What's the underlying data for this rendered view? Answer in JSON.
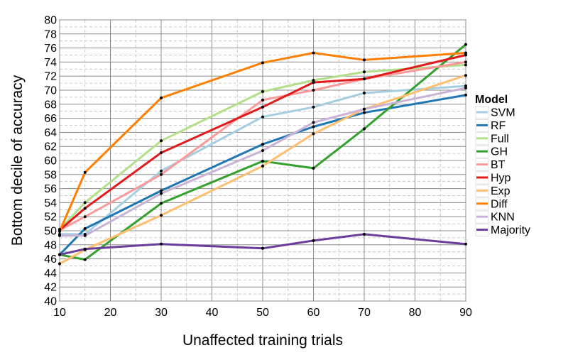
{
  "chart_data": {
    "type": "line",
    "xlabel": "Unaffected training trials",
    "ylabel": "Bottom decile of accuracy",
    "x": [
      10,
      15,
      30,
      50,
      60,
      70,
      90
    ],
    "xticks": [
      10,
      20,
      30,
      40,
      50,
      60,
      70,
      80,
      90
    ],
    "yticks": [
      40,
      42,
      44,
      46,
      48,
      50,
      52,
      54,
      56,
      58,
      60,
      62,
      64,
      66,
      68,
      70,
      72,
      74,
      76,
      78,
      80
    ],
    "xlim": [
      10,
      90
    ],
    "ylim": [
      40,
      80
    ],
    "grid": true,
    "legend": {
      "title": "Model",
      "position": "right"
    },
    "series": [
      {
        "name": "SVM",
        "color": "#a6cee3",
        "values": [
          49.5,
          49.5,
          58.5,
          66.2,
          67.6,
          69.6,
          70.6
        ]
      },
      {
        "name": "RF",
        "color": "#1f78b4",
        "values": [
          46.6,
          50.3,
          55.7,
          62.3,
          64.8,
          66.8,
          69.3
        ]
      },
      {
        "name": "Full",
        "color": "#b2df8a",
        "values": [
          50.2,
          54.0,
          62.8,
          69.8,
          71.4,
          72.6,
          73.6
        ]
      },
      {
        "name": "GH",
        "color": "#33a02c",
        "values": [
          46.6,
          45.9,
          53.9,
          59.9,
          58.9,
          64.5,
          76.5
        ]
      },
      {
        "name": "BT",
        "color": "#fb9a99",
        "values": [
          50.1,
          52.0,
          58.0,
          68.6,
          70.0,
          71.6,
          74.0
        ]
      },
      {
        "name": "Hyp",
        "color": "#e31a1c",
        "values": [
          50.1,
          53.2,
          61.1,
          67.6,
          71.1,
          71.6,
          75.0
        ]
      },
      {
        "name": "Exp",
        "color": "#fdbf6f",
        "values": [
          45.3,
          47.3,
          52.2,
          59.2,
          63.8,
          67.3,
          72.1
        ]
      },
      {
        "name": "Diff",
        "color": "#ff7f00",
        "values": [
          49.9,
          58.3,
          68.9,
          73.9,
          75.3,
          74.3,
          75.3
        ]
      },
      {
        "name": "KNN",
        "color": "#cab2d6",
        "values": [
          49.3,
          49.3,
          55.3,
          61.4,
          65.4,
          67.3,
          70.3
        ]
      },
      {
        "name": "Majority",
        "color": "#6a3d9a",
        "values": [
          46.6,
          47.4,
          48.1,
          47.5,
          48.6,
          49.5,
          48.1
        ]
      }
    ]
  }
}
